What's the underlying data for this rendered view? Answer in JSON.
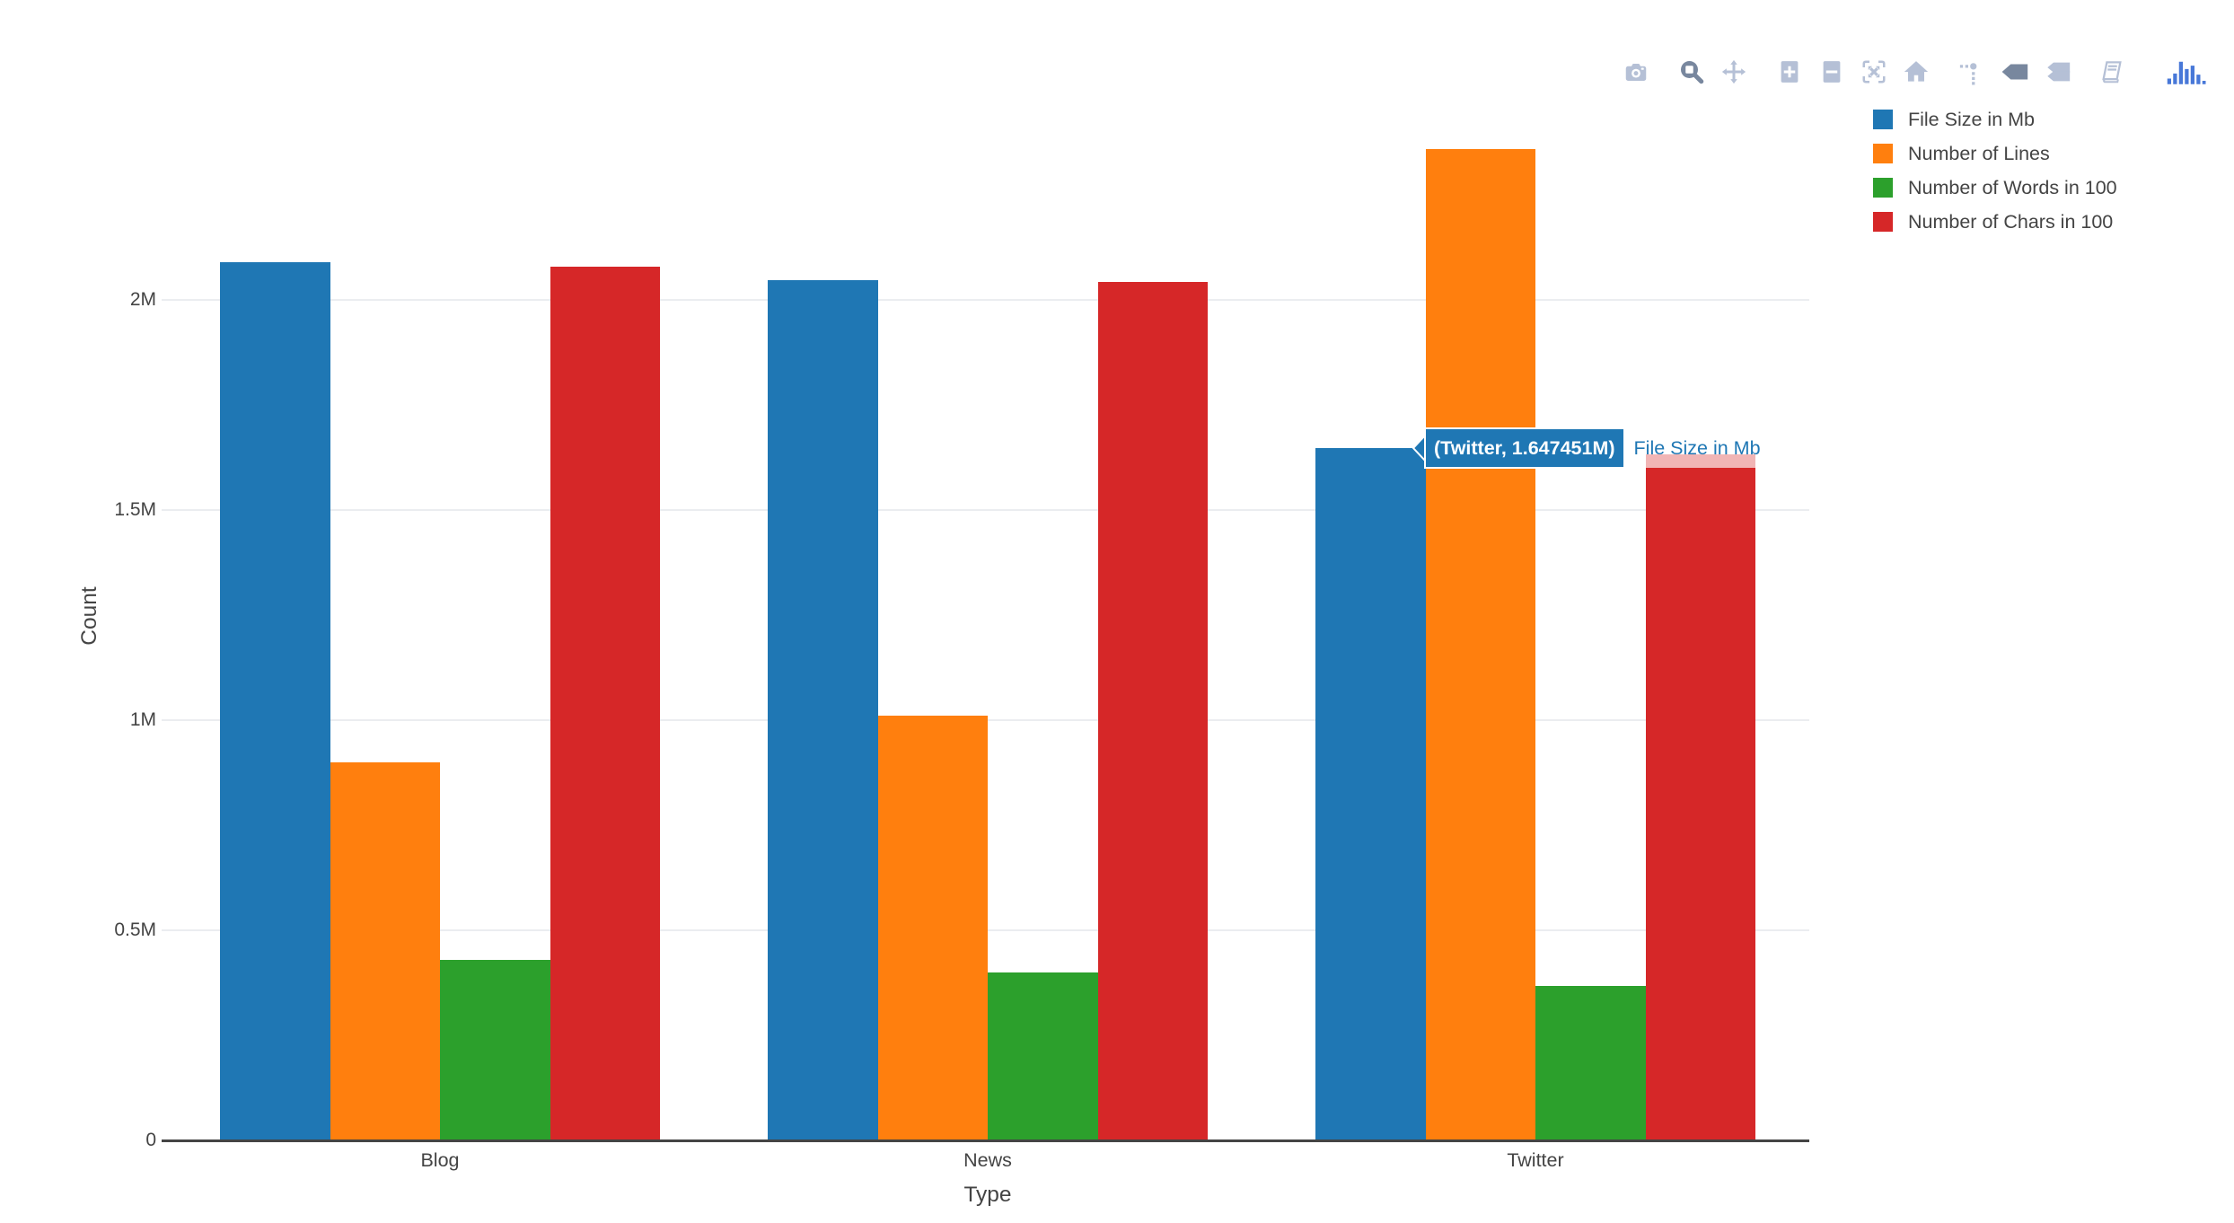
{
  "modebar": {
    "buttons": [
      {
        "icon": "camera-icon",
        "button": "download-plot-as-png",
        "active": false,
        "group_start": false
      },
      {
        "icon": "zoom-icon",
        "button": "zoom-mode",
        "active": true,
        "group_start": true
      },
      {
        "icon": "pan-icon",
        "button": "pan-mode",
        "active": false,
        "group_start": false
      },
      {
        "icon": "zoom-in-icon",
        "button": "zoom-in",
        "active": false,
        "group_start": true
      },
      {
        "icon": "zoom-out-icon",
        "button": "zoom-out",
        "active": false,
        "group_start": false
      },
      {
        "icon": "autoscale-icon",
        "button": "autoscale",
        "active": false,
        "group_start": false
      },
      {
        "icon": "home-icon",
        "button": "reset-axes",
        "active": false,
        "group_start": false
      },
      {
        "icon": "spike-lines-icon",
        "button": "toggle-spike-lines",
        "active": false,
        "group_start": true
      },
      {
        "icon": "hover-closest-icon",
        "button": "show-closest-data-on-hover",
        "active": true,
        "group_start": false
      },
      {
        "icon": "hover-compare-icon",
        "button": "compare-data-on-hover",
        "active": false,
        "group_start": false
      },
      {
        "icon": "notebook-icon",
        "button": "edit-in-chart-studio",
        "active": false,
        "group_start": true
      },
      {
        "icon": "plotly-logo-icon",
        "button": "plotly-logo",
        "active": false,
        "group_start": true
      }
    ],
    "inactive_color": "#b5c0d6",
    "active_color": "#78879e",
    "logo_color": "#4878d8"
  },
  "legend": {
    "items": [
      {
        "label": "File Size in Mb",
        "color": "#1f77b4"
      },
      {
        "label": "Number of Lines",
        "color": "#ff7f0e"
      },
      {
        "label": "Number of Words in 100",
        "color": "#2ca02c"
      },
      {
        "label": "Number of Chars in 100",
        "color": "#d62728"
      }
    ]
  },
  "tooltip": {
    "point_label": "(Twitter, 1.647451M)",
    "trace_label": "File Size in Mb",
    "color": "#1f77b4"
  },
  "chart_data": {
    "type": "bar",
    "title": "",
    "xlabel": "Type",
    "ylabel": "Count",
    "categories": [
      "Blog",
      "News",
      "Twitter"
    ],
    "series": [
      {
        "name": "File Size in Mb",
        "color": "#1f77b4",
        "values": [
          2090000,
          2048000,
          1647451
        ]
      },
      {
        "name": "Number of Lines",
        "color": "#ff7f0e",
        "values": [
          900000,
          1011000,
          2358000
        ]
      },
      {
        "name": "Number of Words in 100",
        "color": "#2ca02c",
        "values": [
          430000,
          400000,
          368000
        ]
      },
      {
        "name": "Number of Chars in 100",
        "color": "#d62728",
        "values": [
          2078000,
          2043000,
          1632000
        ]
      }
    ],
    "yticks": [
      {
        "value": 0,
        "label": "0"
      },
      {
        "value": 500000,
        "label": "0.5M"
      },
      {
        "value": 1000000,
        "label": "1M"
      },
      {
        "value": 1500000,
        "label": "1.5M"
      },
      {
        "value": 2000000,
        "label": "2M"
      }
    ],
    "ylim": [
      0,
      2500000
    ],
    "grid": true,
    "legend_position": "top-right",
    "hovered_point": {
      "category": "Twitter",
      "series": "File Size in Mb",
      "value_label": "1.647451M"
    }
  }
}
